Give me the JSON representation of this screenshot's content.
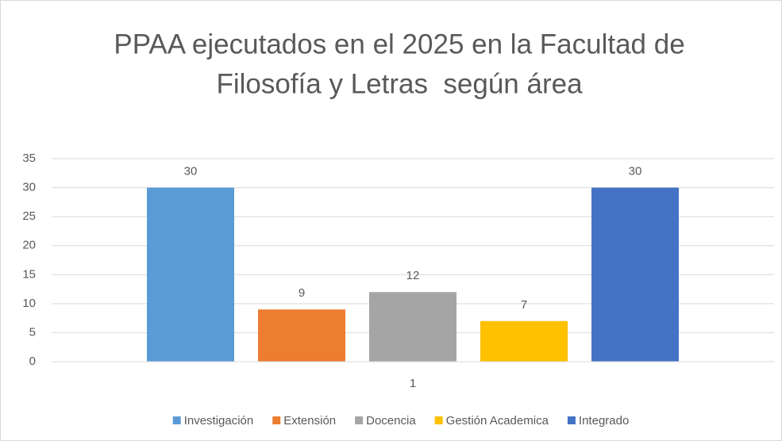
{
  "chart_data": {
    "type": "bar",
    "title": [
      "PPAA ejecutados en el 2025 en la Facultad de",
      "Filosofía y Letras  según área"
    ],
    "categories": [
      "1"
    ],
    "series": [
      {
        "name": "Investigación",
        "color": "#5b9bd5",
        "values": [
          30
        ]
      },
      {
        "name": "Extensión",
        "color": "#ed7d31",
        "values": [
          9
        ]
      },
      {
        "name": "Docencia",
        "color": "#a5a5a5",
        "values": [
          12
        ]
      },
      {
        "name": "Gestión Academica",
        "color": "#ffc000",
        "values": [
          7
        ]
      },
      {
        "name": "Integrado",
        "color": "#4472c4",
        "values": [
          30
        ]
      }
    ],
    "ylim": [
      0,
      35
    ],
    "yticks": [
      0,
      5,
      10,
      15,
      20,
      25,
      30,
      35
    ],
    "grid": true,
    "legend": "bottom"
  }
}
